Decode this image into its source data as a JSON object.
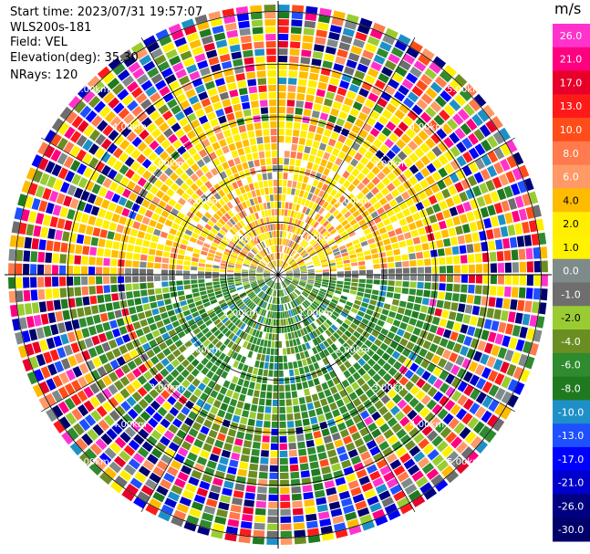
{
  "info": {
    "start_time": "Start time: 2023/07/31 19:57:07",
    "instrument": "WLS200s-181",
    "field": "Field: VEL",
    "elevation": "Elevation(deg): 35.30",
    "nrays": "NRays: 120"
  },
  "chart_data": {
    "type": "heatmap",
    "projection": "polar-ppi",
    "field": "VEL",
    "units": "m/s",
    "n_rays": 120,
    "range_rings": [
      {
        "label": "1.00km",
        "value": 1.0
      },
      {
        "label": "2.00km",
        "value": 2.0
      },
      {
        "label": "3.00km",
        "value": 3.0
      },
      {
        "label": "4.00km",
        "value": 4.0
      },
      {
        "label": "5.00km",
        "value": 5.0
      }
    ],
    "max_range_km": 5.2,
    "colorbar": {
      "title": "m/s",
      "labels": [
        "26.0",
        "21.0",
        "17.0",
        "13.0",
        "10.0",
        "8.0",
        "6.0",
        "4.0",
        "2.0",
        "1.0",
        "0.0",
        "-1.0",
        "-2.0",
        "-4.0",
        "-6.0",
        "-8.0",
        "-10.0",
        "-13.0",
        "-17.0",
        "-21.0",
        "-26.0",
        "-30.0"
      ],
      "colors": [
        "#ff33cc",
        "#ff0080",
        "#e8002a",
        "#ff1a1a",
        "#ff4d1a",
        "#ff7a4d",
        "#ff9966",
        "#ffbb00",
        "#ffee00",
        "#fff200",
        "#7f8b8b",
        "#6e6e6e",
        "#99cc33",
        "#6b8e23",
        "#2e8b2e",
        "#1f7a1f",
        "#1e90c8",
        "#1e50ff",
        "#0000ff",
        "#0000cc",
        "#000080",
        "#00006b"
      ]
    }
  }
}
